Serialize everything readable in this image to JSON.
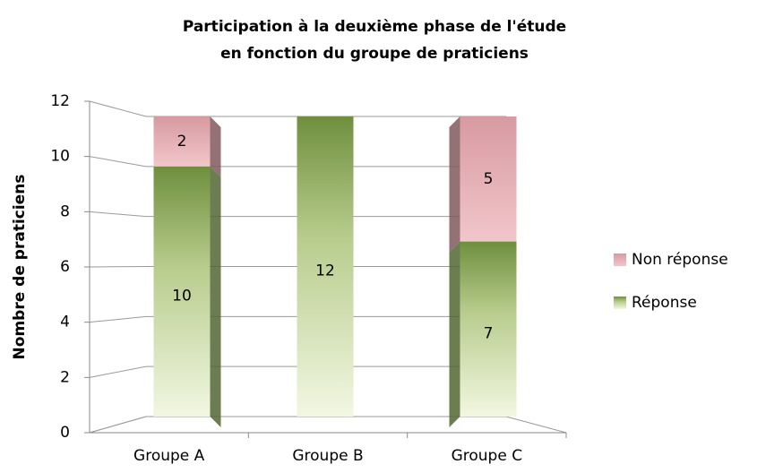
{
  "chart_data": {
    "type": "bar",
    "stacked": true,
    "title": [
      "Participation à la deuxième phase de l'étude",
      "en fonction du groupe de praticiens"
    ],
    "y_label": "Nombre de praticiens",
    "categories": [
      "Groupe A",
      "Groupe B",
      "Groupe C"
    ],
    "series": [
      {
        "name": "Réponse",
        "color": "#8aab55",
        "values": [
          10,
          12,
          7
        ]
      },
      {
        "name": "Non réponse",
        "color": "#d9959c",
        "values": [
          2,
          0,
          5
        ]
      }
    ],
    "ylim": [
      0,
      12
    ],
    "yticks": [
      0,
      2,
      4,
      6,
      8,
      10,
      12
    ],
    "grid": true,
    "legend": "right"
  }
}
